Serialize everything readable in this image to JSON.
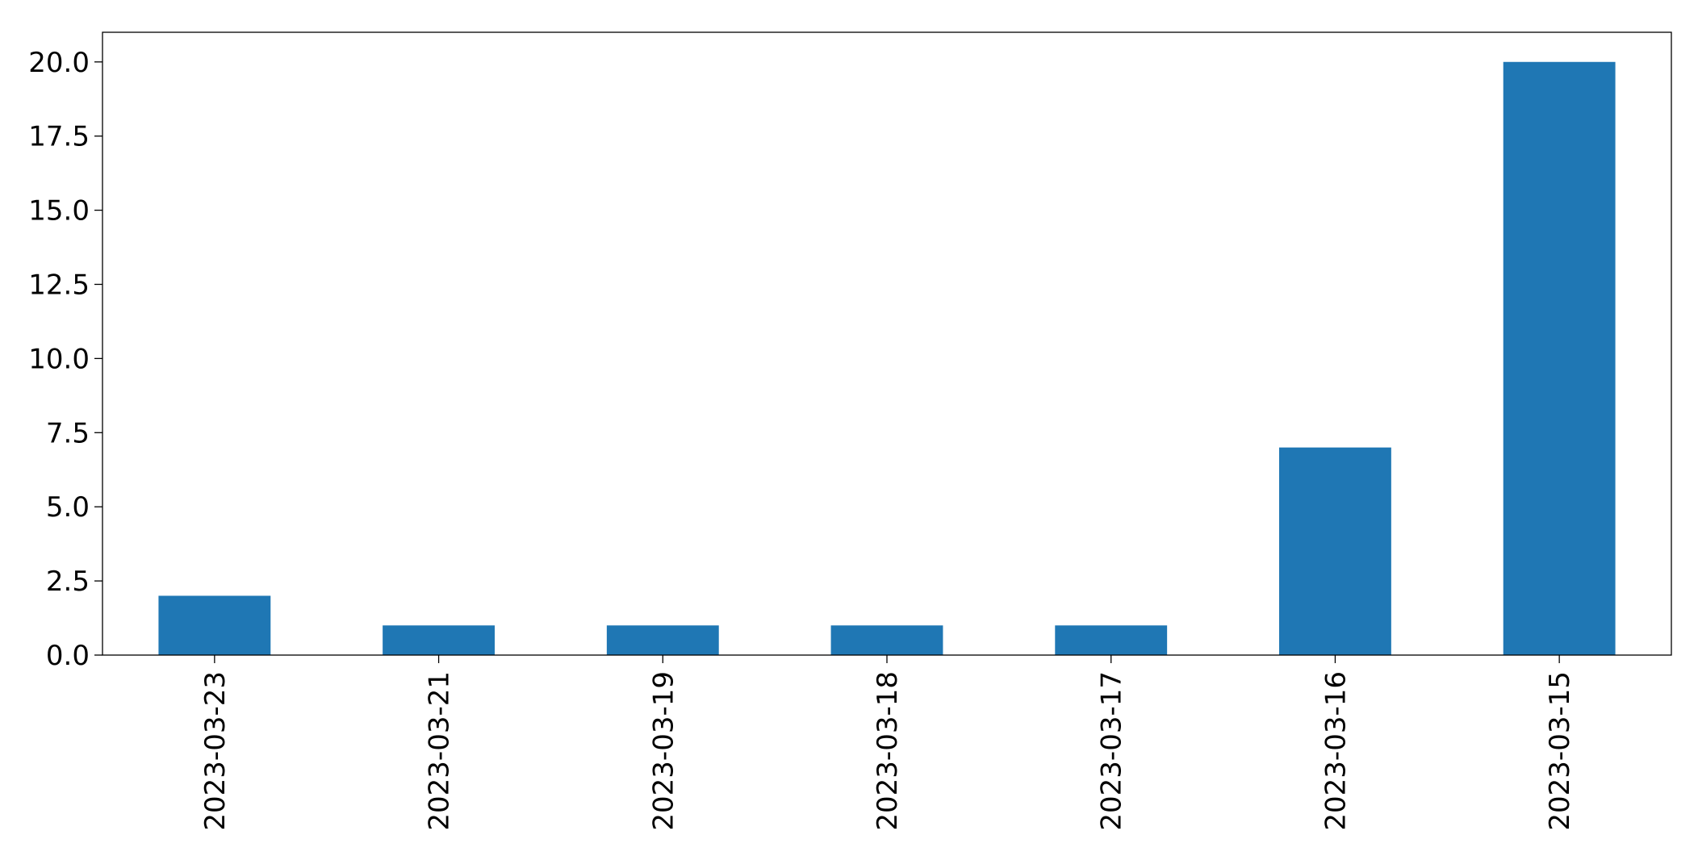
{
  "chart_data": {
    "type": "bar",
    "title": "",
    "xlabel": "",
    "ylabel": "",
    "categories": [
      "2023-03-23",
      "2023-03-21",
      "2023-03-19",
      "2023-03-18",
      "2023-03-17",
      "2023-03-16",
      "2023-03-15"
    ],
    "values": [
      2,
      1,
      1,
      1,
      1,
      7,
      20
    ],
    "ylim": [
      0,
      21
    ],
    "yticks": [
      "0.0",
      "2.5",
      "5.0",
      "7.5",
      "10.0",
      "12.5",
      "15.0",
      "17.5",
      "20.0"
    ],
    "grid": false,
    "legend": "none",
    "bar_color": "#1f77b4"
  }
}
